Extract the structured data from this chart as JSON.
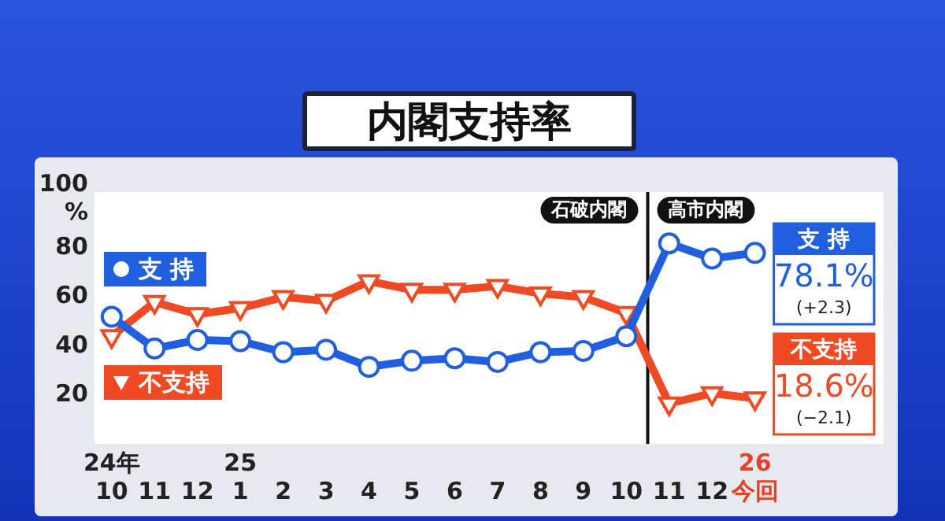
{
  "chart_data": {
    "type": "line",
    "title": "内閣支持率",
    "x": [
      "2024-10",
      "2024-11",
      "2024-12",
      "2025-01",
      "2025-02",
      "2025-03",
      "2025-04",
      "2025-05",
      "2025-06",
      "2025-07",
      "2025-08",
      "2025-09",
      "2025-10",
      "2025-11",
      "2025-12",
      "2026-01"
    ],
    "series": [
      {
        "name": "支 持",
        "color": "#1f5fe0",
        "marker": "circle",
        "values": [
          52,
          39,
          42.5,
          42,
          37.5,
          38.5,
          31.5,
          34,
          35,
          33.5,
          37.5,
          38,
          44,
          82,
          75.8,
          78.1
        ],
        "value_labels": [
          null,
          null,
          null,
          null,
          null,
          null,
          null,
          null,
          null,
          null,
          null,
          null,
          null,
          null,
          null,
          "78.1%"
        ]
      },
      {
        "name": "不支持",
        "color": "#f04a24",
        "marker": "triangle",
        "values": [
          44,
          58,
          53,
          55.5,
          60,
          58.5,
          66.5,
          63,
          63,
          64.5,
          61.5,
          60,
          53.5,
          16.5,
          20.7,
          18.6
        ],
        "value_labels": [
          null,
          null,
          null,
          null,
          null,
          null,
          null,
          null,
          null,
          null,
          null,
          null,
          null,
          null,
          null,
          "18.6%"
        ]
      }
    ],
    "xlim": [
      "2024-09-19",
      "2026-04-01"
    ],
    "xticks": [
      {
        "value": "2024-10",
        "label": "24年\n10"
      },
      {
        "value": "2024-11",
        "label": "11"
      },
      {
        "value": "2024-12",
        "label": "12"
      },
      {
        "value": "2025-01",
        "label": "25\n1"
      },
      {
        "value": "2025-02",
        "label": "2"
      },
      {
        "value": "2025-03",
        "label": "3"
      },
      {
        "value": "2025-04",
        "label": "4"
      },
      {
        "value": "2025-05",
        "label": "5"
      },
      {
        "value": "2025-06",
        "label": "6"
      },
      {
        "value": "2025-07",
        "label": "7"
      },
      {
        "value": "2025-08",
        "label": "8"
      },
      {
        "value": "2025-09",
        "label": "9"
      },
      {
        "value": "2025-10",
        "label": "10"
      },
      {
        "value": "2025-11",
        "label": "11"
      },
      {
        "value": "2025-12",
        "label": "12"
      },
      {
        "value": "2026-01",
        "label": "26\n今回"
      }
    ],
    "ylim": [
      0,
      103
    ],
    "yticks": [
      20,
      40,
      60,
      80,
      {
        "value": 100,
        "label": "100\n%"
      }
    ],
    "grid": false,
    "legend": "left",
    "ref_lines": [
      {
        "axis": "x",
        "value": "2025-10-16",
        "color": "#111111"
      }
    ],
    "annotations": [
      "石破内閣",
      "高市内閣",
      "(+2.3)",
      "(−2.1)"
    ]
  }
}
